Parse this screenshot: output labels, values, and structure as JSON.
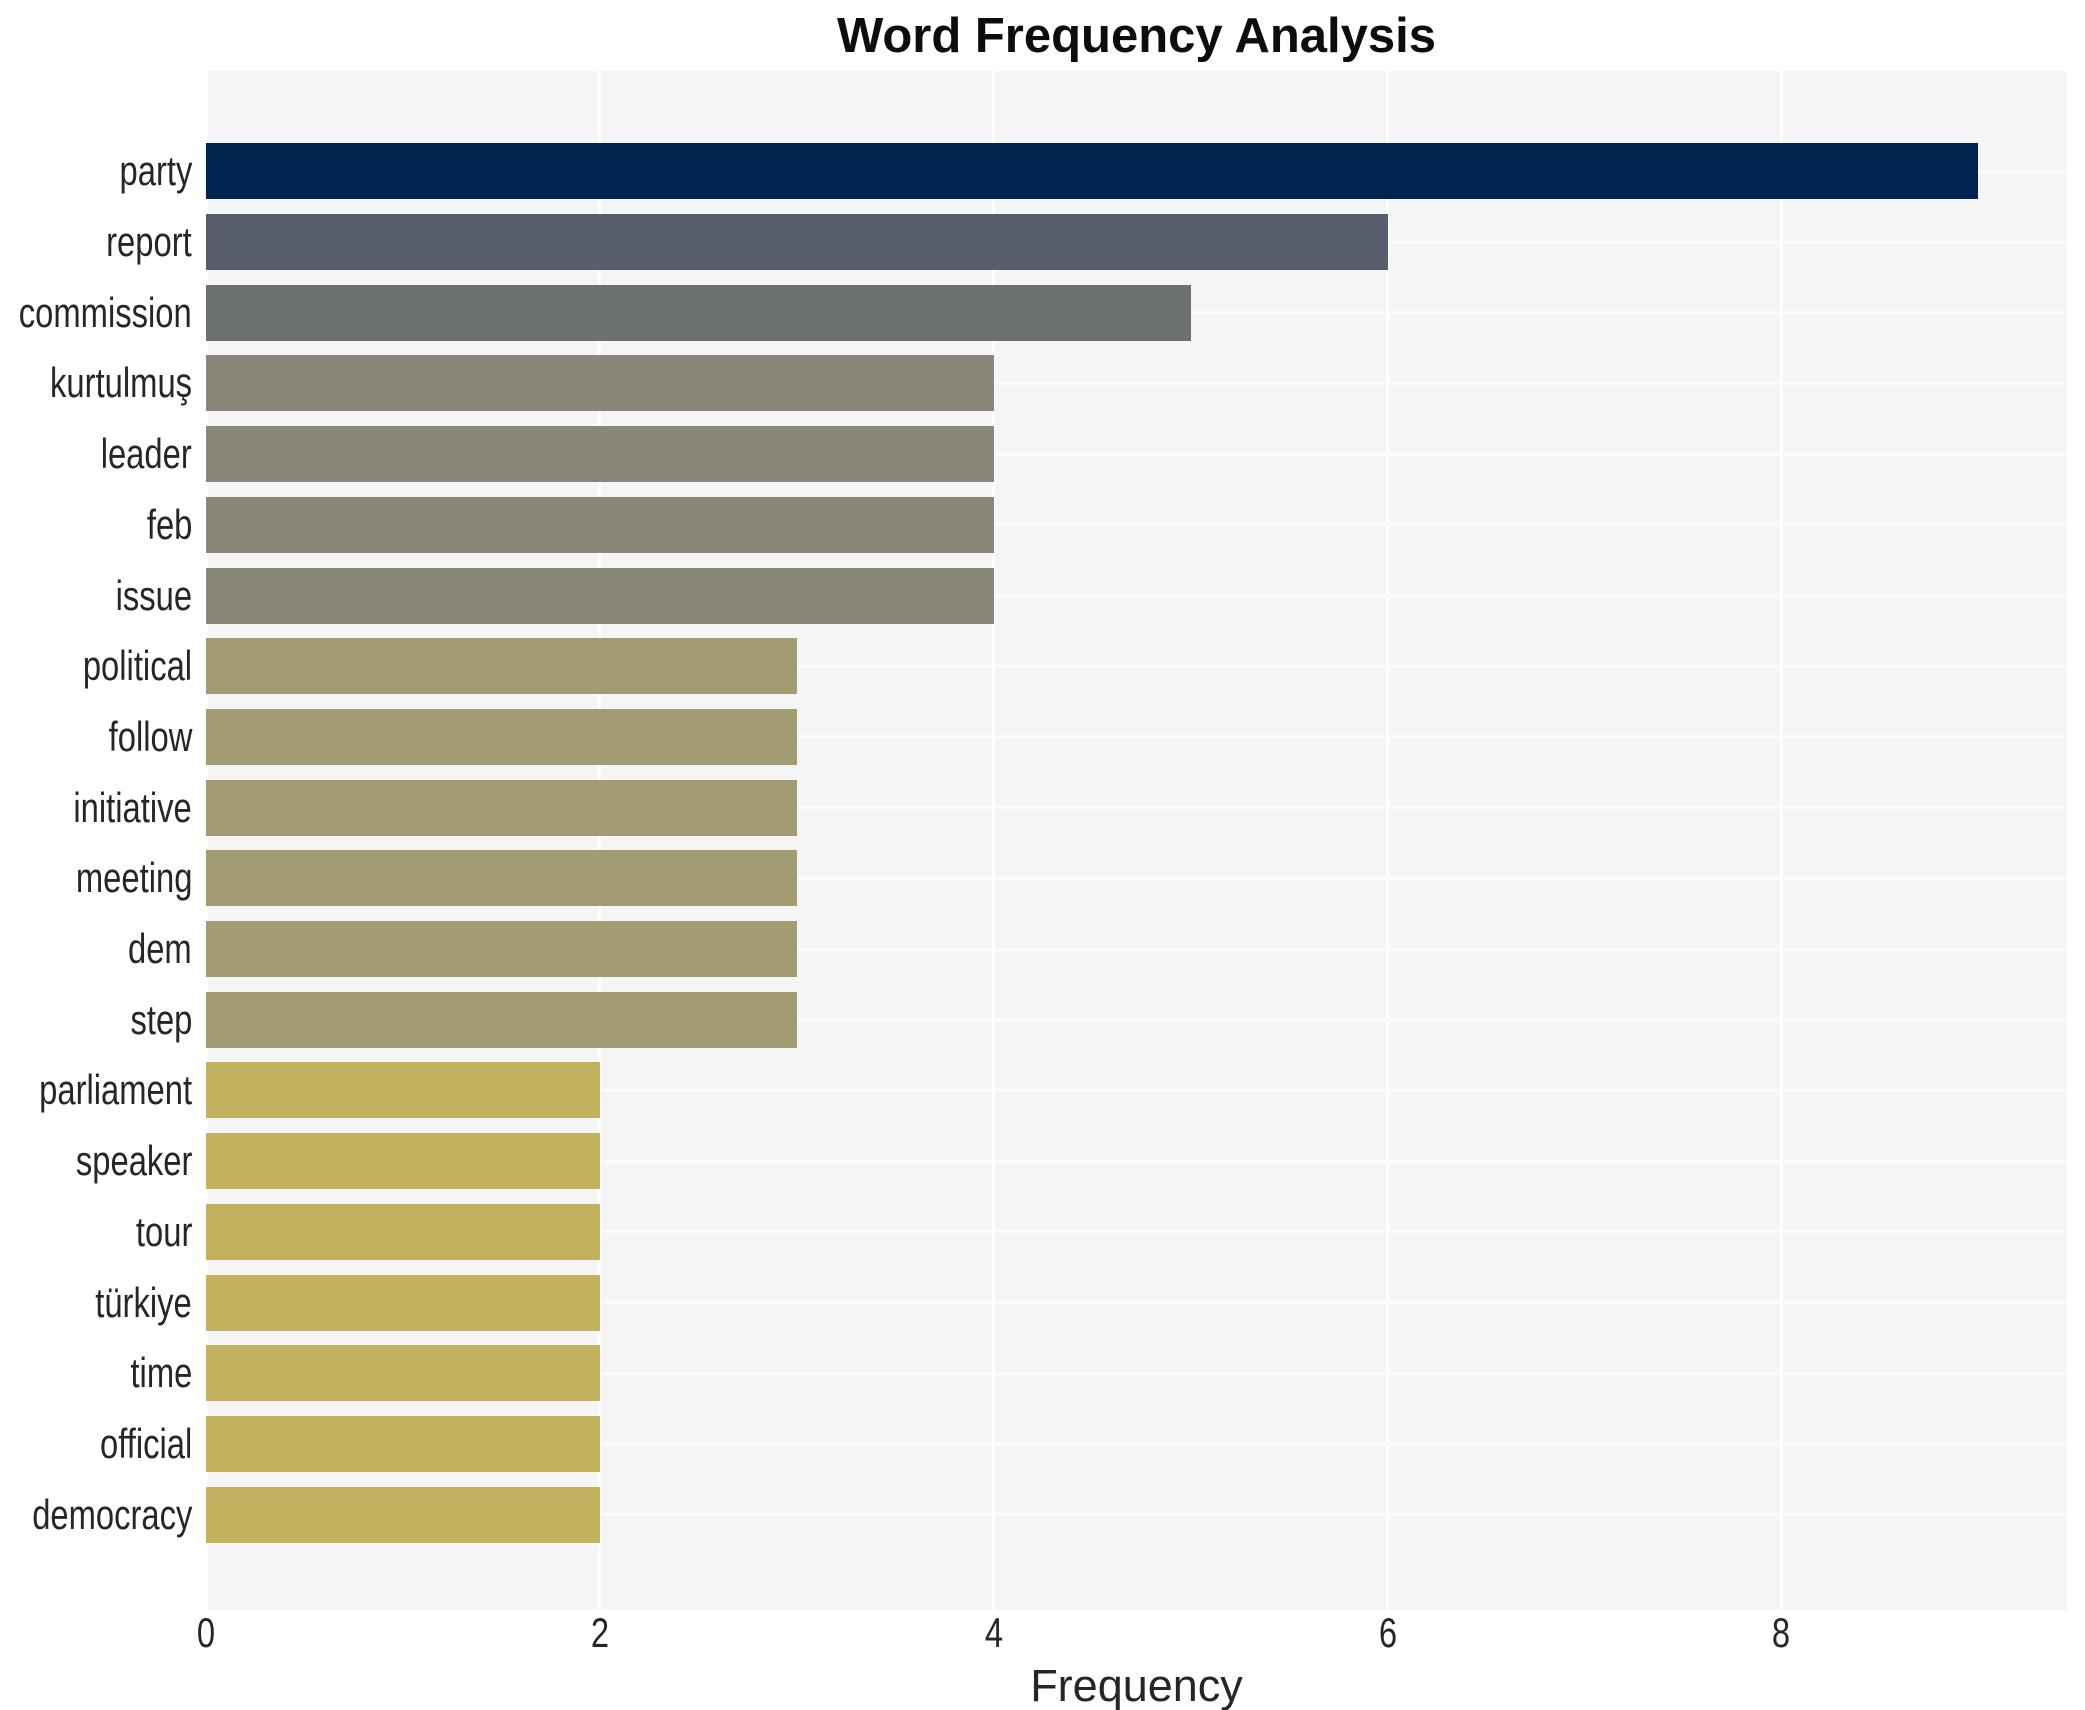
{
  "chart_data": {
    "type": "bar",
    "orientation": "horizontal",
    "title": "Word Frequency Analysis",
    "xlabel": "Frequency",
    "ylabel": "",
    "categories": [
      "party",
      "report",
      "commission",
      "kurtulmuş",
      "leader",
      "feb",
      "issue",
      "political",
      "follow",
      "initiative",
      "meeting",
      "dem",
      "step",
      "parliament",
      "speaker",
      "tour",
      "türkiye",
      "time",
      "official",
      "democracy"
    ],
    "values": [
      9,
      6,
      5,
      4,
      4,
      4,
      4,
      3,
      3,
      3,
      3,
      3,
      3,
      2,
      2,
      2,
      2,
      2,
      2,
      2
    ],
    "bar_colors": [
      "#00234f",
      "#575d6d",
      "#6d7070",
      "#8a8779",
      "#8a8779",
      "#8a8779",
      "#8a8779",
      "#a39c72",
      "#a39c72",
      "#a39c72",
      "#a39c72",
      "#a39c72",
      "#a39c72",
      "#c2b15e",
      "#c2b15e",
      "#c2b15e",
      "#c2b15e",
      "#c2b15e",
      "#c2b15e",
      "#c2b15e"
    ],
    "xlim": [
      0,
      9.45
    ],
    "x_ticks": [
      0,
      2,
      4,
      6,
      8
    ],
    "grid": "on",
    "legend": "none",
    "plot_background": "#f5f5f6",
    "grid_color": "#ffffff",
    "figure_background": "#ffffff"
  }
}
